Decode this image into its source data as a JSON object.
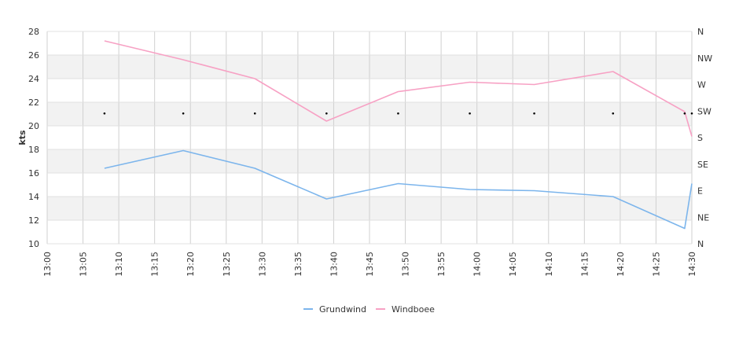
{
  "chart_data": {
    "type": "line",
    "y_axis": {
      "label": "kts",
      "min": 10,
      "max": 28,
      "ticks": [
        "10",
        "12",
        "14",
        "16",
        "18",
        "20",
        "22",
        "24",
        "26",
        "28"
      ]
    },
    "y2_axis": {
      "ticks": [
        "N",
        "NE",
        "E",
        "SE",
        "S",
        "SW",
        "W",
        "NW",
        "N"
      ]
    },
    "x_axis": {
      "ticks": [
        "13:00",
        "13:05",
        "13:10",
        "13:15",
        "13:20",
        "13:25",
        "13:30",
        "13:35",
        "13:40",
        "13:45",
        "13:50",
        "13:55",
        "14:00",
        "14:05",
        "14:10",
        "14:15",
        "14:20",
        "14:25",
        "14:30"
      ]
    },
    "series": [
      {
        "name": "Grundwind",
        "color": "#7cb5ec",
        "x": [
          "13:08",
          "13:19",
          "13:29",
          "13:39",
          "13:49",
          "13:59",
          "14:08",
          "14:19",
          "14:29",
          "14:30"
        ],
        "values": [
          16.4,
          17.9,
          16.4,
          13.8,
          15.1,
          14.6,
          14.5,
          14.0,
          11.3,
          15.1
        ]
      },
      {
        "name": "Windboee",
        "color": "#f7a1c4",
        "x": [
          "13:08",
          "13:19",
          "13:29",
          "13:39",
          "13:49",
          "13:59",
          "14:08",
          "14:19",
          "14:29",
          "14:30"
        ],
        "values": [
          27.2,
          25.6,
          24.0,
          20.4,
          22.9,
          23.7,
          23.5,
          24.6,
          21.2,
          19.1
        ]
      }
    ],
    "direction_markers": {
      "x": [
        "13:08",
        "13:19",
        "13:29",
        "13:39",
        "13:49",
        "13:59",
        "14:08",
        "14:19",
        "14:29",
        "14:30"
      ],
      "value": "SW"
    },
    "grid": true,
    "legend": "bottom-center"
  }
}
